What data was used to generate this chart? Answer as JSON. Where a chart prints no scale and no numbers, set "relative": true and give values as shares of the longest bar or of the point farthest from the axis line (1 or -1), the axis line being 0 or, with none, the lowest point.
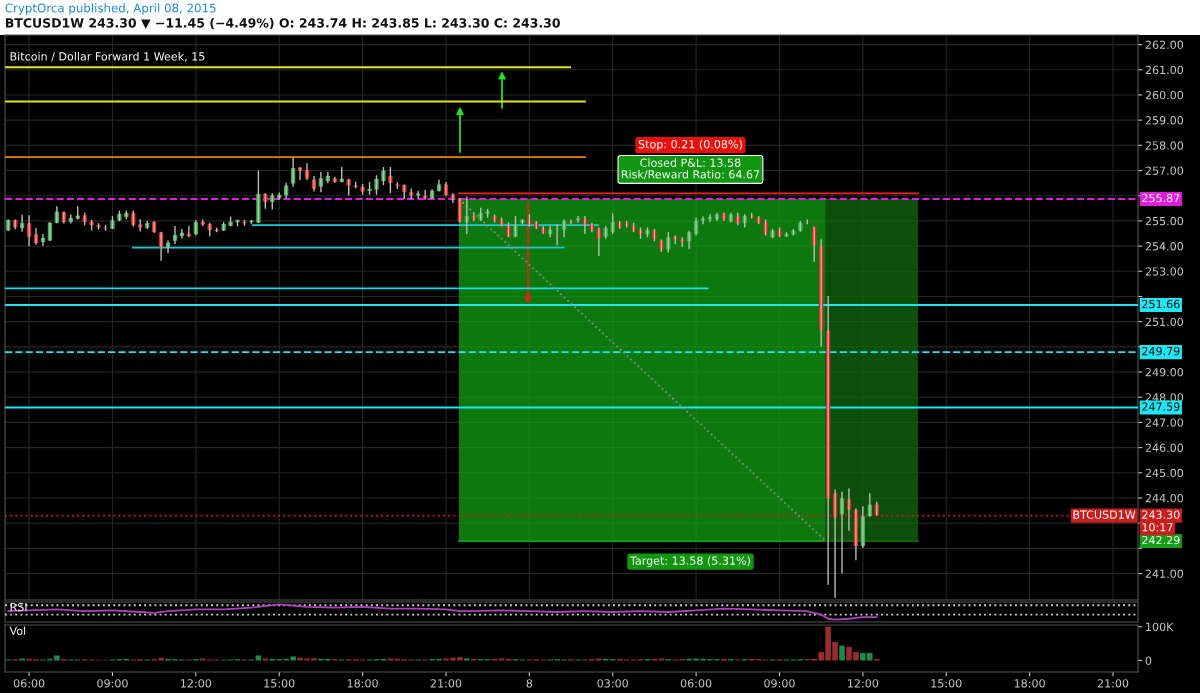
{
  "chart_data": [
    {
      "type": "candlestick",
      "title": "Bitcoin / Dollar Forward 1 Week, 15",
      "subtitle": "BTCUSD1W 243.30 ▼ −11.45 (−4.49%) O: 243.74 H: 243.85 L: 243.30 C: 243.30",
      "x": [
        "2015-04-07T05:15",
        "2015-04-07T05:30",
        "2015-04-07T05:45",
        "2015-04-07T06:00",
        "2015-04-07T06:15",
        "2015-04-07T06:30",
        "2015-04-07T06:45",
        "2015-04-07T07:00",
        "2015-04-07T07:15",
        "2015-04-07T07:30",
        "2015-04-07T07:45",
        "2015-04-07T08:00",
        "2015-04-07T08:15",
        "2015-04-07T08:30",
        "2015-04-07T08:45",
        "2015-04-07T09:00",
        "2015-04-07T09:15",
        "2015-04-07T09:30",
        "2015-04-07T09:45",
        "2015-04-07T10:00",
        "2015-04-07T10:15",
        "2015-04-07T10:30",
        "2015-04-07T10:45",
        "2015-04-07T11:00",
        "2015-04-07T11:15",
        "2015-04-07T11:30",
        "2015-04-07T11:45",
        "2015-04-07T12:00",
        "2015-04-07T12:15",
        "2015-04-07T12:30",
        "2015-04-07T12:45",
        "2015-04-07T13:00",
        "2015-04-07T13:15",
        "2015-04-07T13:30",
        "2015-04-07T13:45",
        "2015-04-07T14:00",
        "2015-04-07T14:15",
        "2015-04-07T14:30",
        "2015-04-07T14:45",
        "2015-04-07T15:00",
        "2015-04-07T15:15",
        "2015-04-07T15:30",
        "2015-04-07T15:45",
        "2015-04-07T16:00",
        "2015-04-07T16:15",
        "2015-04-07T16:30",
        "2015-04-07T16:45",
        "2015-04-07T17:00",
        "2015-04-07T17:15",
        "2015-04-07T17:30",
        "2015-04-07T17:45",
        "2015-04-07T18:00",
        "2015-04-07T18:15",
        "2015-04-07T18:30",
        "2015-04-07T18:45",
        "2015-04-07T19:00",
        "2015-04-07T19:15",
        "2015-04-07T19:30",
        "2015-04-07T19:45",
        "2015-04-07T20:00",
        "2015-04-07T20:15",
        "2015-04-07T20:30",
        "2015-04-07T20:45",
        "2015-04-07T21:00",
        "2015-04-07T21:15",
        "2015-04-07T21:30",
        "2015-04-07T21:45",
        "2015-04-07T22:00",
        "2015-04-07T22:15",
        "2015-04-07T22:30",
        "2015-04-07T22:45",
        "2015-04-07T23:00",
        "2015-04-07T23:15",
        "2015-04-07T23:30",
        "2015-04-07T23:45",
        "2015-04-08T00:00",
        "2015-04-08T00:15",
        "2015-04-08T00:30",
        "2015-04-08T00:45",
        "2015-04-08T01:00",
        "2015-04-08T01:15",
        "2015-04-08T01:30",
        "2015-04-08T01:45",
        "2015-04-08T02:00",
        "2015-04-08T02:15",
        "2015-04-08T02:30",
        "2015-04-08T02:45",
        "2015-04-08T03:00",
        "2015-04-08T03:15",
        "2015-04-08T03:30",
        "2015-04-08T03:45",
        "2015-04-08T04:00",
        "2015-04-08T04:15",
        "2015-04-08T04:30",
        "2015-04-08T04:45",
        "2015-04-08T05:00",
        "2015-04-08T05:15",
        "2015-04-08T05:30",
        "2015-04-08T05:45",
        "2015-04-08T06:00",
        "2015-04-08T06:15",
        "2015-04-08T06:30",
        "2015-04-08T06:45",
        "2015-04-08T07:00",
        "2015-04-08T07:15",
        "2015-04-08T07:30",
        "2015-04-08T07:45",
        "2015-04-08T08:00",
        "2015-04-08T08:15",
        "2015-04-08T08:30",
        "2015-04-08T08:45",
        "2015-04-08T09:00",
        "2015-04-08T09:15",
        "2015-04-08T09:30",
        "2015-04-08T09:45",
        "2015-04-08T10:00",
        "2015-04-08T10:15",
        "2015-04-08T10:30",
        "2015-04-08T10:45",
        "2015-04-08T11:00",
        "2015-04-08T11:15",
        "2015-04-08T11:30",
        "2015-04-08T11:45",
        "2015-04-08T12:00",
        "2015-04-08T12:15",
        "2015-04-08T12:30"
      ],
      "ohlc": [
        [
          254.62,
          255.06,
          254.6,
          255.04
        ],
        [
          255.04,
          255.06,
          254.67,
          254.74
        ],
        [
          254.71,
          255.23,
          254.57,
          254.91
        ],
        [
          254.91,
          255.22,
          254.0,
          254.37
        ],
        [
          254.47,
          254.71,
          254.05,
          254.12
        ],
        [
          254.16,
          254.48,
          254.0,
          254.32
        ],
        [
          254.22,
          254.95,
          254.2,
          254.93
        ],
        [
          254.92,
          255.58,
          254.91,
          255.37
        ],
        [
          255.35,
          255.37,
          254.9,
          254.96
        ],
        [
          254.96,
          255.25,
          254.9,
          255.12
        ],
        [
          255.09,
          255.58,
          255.06,
          255.21
        ],
        [
          255.22,
          255.32,
          254.83,
          254.96
        ],
        [
          254.97,
          255.04,
          254.62,
          254.83
        ],
        [
          254.83,
          254.91,
          254.65,
          254.75
        ],
        [
          254.73,
          254.85,
          254.61,
          254.7
        ],
        [
          254.69,
          255.19,
          254.68,
          255.02
        ],
        [
          255.02,
          255.41,
          254.99,
          255.28
        ],
        [
          255.15,
          255.41,
          255.06,
          255.32
        ],
        [
          255.32,
          255.41,
          254.78,
          254.83
        ],
        [
          254.86,
          255.07,
          254.58,
          254.74
        ],
        [
          254.73,
          255.0,
          254.68,
          254.91
        ],
        [
          254.96,
          254.99,
          254.52,
          254.55
        ],
        [
          254.55,
          254.57,
          253.42,
          253.94
        ],
        [
          253.96,
          254.22,
          253.73,
          254.14
        ],
        [
          254.21,
          254.8,
          254.08,
          254.44
        ],
        [
          254.39,
          254.68,
          254.29,
          254.53
        ],
        [
          254.49,
          254.8,
          254.35,
          254.4
        ],
        [
          254.47,
          255.04,
          254.43,
          254.95
        ],
        [
          254.96,
          255.06,
          254.8,
          254.86
        ],
        [
          254.88,
          254.93,
          254.39,
          254.63
        ],
        [
          254.65,
          254.73,
          254.55,
          254.6
        ],
        [
          254.62,
          254.96,
          254.6,
          254.88
        ],
        [
          254.8,
          255.17,
          254.78,
          254.97
        ],
        [
          254.95,
          255.06,
          254.78,
          255.03
        ],
        [
          254.96,
          255.04,
          254.8,
          254.91
        ],
        [
          254.95,
          255.04,
          254.87,
          255.0
        ],
        [
          254.93,
          257.0,
          254.91,
          256.07
        ],
        [
          256.07,
          256.1,
          255.48,
          255.75
        ],
        [
          255.75,
          256.1,
          255.45,
          256.01
        ],
        [
          255.9,
          256.13,
          255.84,
          256.04
        ],
        [
          256.01,
          256.51,
          255.9,
          256.4
        ],
        [
          256.49,
          257.5,
          256.36,
          257.1
        ],
        [
          257.12,
          257.14,
          256.62,
          256.98
        ],
        [
          257.03,
          257.29,
          256.62,
          256.68
        ],
        [
          256.64,
          256.77,
          256.17,
          256.27
        ],
        [
          256.36,
          256.94,
          256.14,
          256.69
        ],
        [
          256.58,
          256.94,
          256.49,
          256.79
        ],
        [
          256.69,
          256.75,
          256.51,
          256.54
        ],
        [
          256.54,
          257.14,
          256.53,
          256.67
        ],
        [
          256.65,
          256.67,
          256.01,
          256.4
        ],
        [
          256.41,
          256.55,
          256.29,
          256.35
        ],
        [
          256.35,
          256.46,
          256.04,
          256.17
        ],
        [
          256.19,
          256.55,
          256.04,
          256.27
        ],
        [
          256.24,
          256.81,
          256.04,
          256.67
        ],
        [
          256.58,
          257.14,
          256.42,
          257.0
        ],
        [
          256.79,
          257.14,
          256.1,
          256.51
        ],
        [
          256.44,
          256.53,
          256.27,
          256.39
        ],
        [
          256.44,
          256.44,
          255.87,
          256.14
        ],
        [
          256.14,
          256.29,
          255.87,
          256.01
        ],
        [
          256.01,
          256.2,
          255.9,
          256.09
        ],
        [
          256.0,
          256.23,
          255.84,
          255.9
        ],
        [
          255.9,
          256.26,
          255.87,
          256.2
        ],
        [
          256.19,
          256.63,
          256.17,
          256.45
        ],
        [
          256.45,
          256.54,
          255.99,
          256.03
        ],
        [
          256.05,
          256.1,
          255.71,
          255.9
        ],
        [
          255.88,
          255.91,
          254.93,
          254.97
        ],
        [
          254.94,
          255.97,
          254.48,
          255.19
        ],
        [
          255.19,
          255.32,
          255.0,
          255.06
        ],
        [
          255.06,
          255.52,
          255.0,
          255.3
        ],
        [
          255.29,
          255.48,
          255.13,
          255.38
        ],
        [
          255.19,
          255.26,
          254.94,
          255.0
        ],
        [
          255.03,
          255.13,
          254.78,
          254.86
        ],
        [
          254.8,
          254.94,
          254.35,
          254.37
        ],
        [
          254.37,
          255.19,
          254.35,
          254.84
        ],
        [
          254.93,
          255.07,
          254.87,
          255.04
        ],
        [
          254.99,
          255.26,
          254.77,
          254.86
        ],
        [
          254.93,
          255.0,
          254.68,
          254.73
        ],
        [
          254.71,
          254.8,
          254.48,
          254.52
        ],
        [
          254.48,
          254.8,
          254.35,
          254.65
        ],
        [
          254.68,
          254.87,
          254.03,
          254.7
        ],
        [
          254.65,
          255.06,
          254.35,
          255.0
        ],
        [
          254.99,
          255.06,
          254.87,
          254.93
        ],
        [
          255.03,
          255.19,
          254.93,
          255.1
        ],
        [
          255.09,
          255.19,
          254.48,
          254.86
        ],
        [
          254.86,
          254.93,
          254.55,
          254.64
        ],
        [
          254.7,
          254.74,
          253.61,
          254.31
        ],
        [
          254.37,
          254.8,
          254.29,
          254.71
        ],
        [
          254.55,
          255.29,
          254.48,
          254.96
        ],
        [
          254.93,
          255.0,
          254.68,
          254.75
        ],
        [
          254.93,
          255.0,
          254.74,
          254.83
        ],
        [
          254.8,
          254.93,
          254.55,
          254.61
        ],
        [
          254.64,
          254.74,
          254.29,
          254.46
        ],
        [
          254.46,
          254.74,
          254.35,
          254.64
        ],
        [
          254.61,
          254.68,
          254.19,
          254.29
        ],
        [
          254.22,
          254.26,
          253.77,
          253.86
        ],
        [
          253.86,
          254.55,
          253.74,
          254.35
        ],
        [
          254.37,
          254.42,
          254.07,
          254.26
        ],
        [
          254.26,
          254.35,
          253.96,
          254.16
        ],
        [
          254.19,
          254.61,
          253.87,
          254.55
        ],
        [
          254.48,
          255.13,
          254.42,
          255.0
        ],
        [
          255.0,
          255.17,
          254.87,
          255.09
        ],
        [
          255.06,
          255.26,
          254.96,
          255.16
        ],
        [
          255.06,
          255.32,
          255.0,
          255.26
        ],
        [
          255.29,
          255.32,
          255.0,
          255.06
        ],
        [
          254.99,
          255.32,
          254.94,
          255.26
        ],
        [
          255.22,
          255.32,
          254.83,
          254.91
        ],
        [
          254.91,
          255.26,
          254.74,
          255.19
        ],
        [
          255.19,
          255.32,
          255.09,
          255.12
        ],
        [
          255.13,
          255.19,
          254.87,
          254.93
        ],
        [
          254.96,
          255.06,
          254.42,
          254.48
        ],
        [
          254.35,
          254.68,
          254.31,
          254.61
        ],
        [
          254.65,
          254.74,
          254.35,
          254.39
        ],
        [
          254.39,
          254.55,
          254.35,
          254.48
        ],
        [
          254.47,
          254.68,
          254.42,
          254.6
        ],
        [
          254.61,
          255.0,
          254.57,
          254.93
        ],
        [
          254.93,
          255.06,
          254.87,
          254.9
        ],
        [
          254.75,
          254.78,
          253.38,
          254.03
        ],
        [
          253.99,
          254.29,
          250.01,
          250.66
        ],
        [
          250.64,
          252.02,
          240.56,
          243.99
        ],
        [
          244.19,
          244.34,
          240.04,
          243.22
        ],
        [
          243.35,
          244.25,
          241.01,
          243.99
        ],
        [
          243.95,
          244.38,
          242.7,
          243.54
        ],
        [
          243.51,
          243.58,
          241.53,
          242.09
        ],
        [
          242.09,
          243.67,
          242.01,
          243.28
        ],
        [
          243.28,
          244.19,
          243.25,
          243.73
        ],
        [
          243.74,
          243.85,
          243.3,
          243.3
        ]
      ],
      "xlim": [
        "2015-04-07T05:08",
        "2015-04-08T21:54"
      ],
      "xticks": [
        {
          "value": "2015-04-07T06:00",
          "label": null
        },
        {
          "value": "2015-04-07T09:00",
          "label": null
        },
        {
          "value": "2015-04-07T12:00",
          "label": null
        },
        {
          "value": "2015-04-07T15:00",
          "label": null
        },
        {
          "value": "2015-04-07T18:00",
          "label": null
        },
        {
          "value": "2015-04-07T21:00",
          "label": null
        },
        {
          "value": "2015-04-08T00:00",
          "label": null
        },
        {
          "value": "2015-04-08T03:00",
          "label": null
        },
        {
          "value": "2015-04-08T06:00",
          "label": null
        },
        {
          "value": "2015-04-08T09:00",
          "label": null
        },
        {
          "value": "2015-04-08T12:00",
          "label": null
        },
        {
          "value": "2015-04-08T15:00",
          "label": null
        },
        {
          "value": "2015-04-08T18:00",
          "label": null
        },
        {
          "value": "2015-04-08T21:00",
          "label": null
        }
      ],
      "ylim": [
        239.95,
        262.38
      ],
      "yticks": [
        {
          "value": 241,
          "label": "241.00"
        },
        {
          "value": 242,
          "label": null
        },
        {
          "value": 243,
          "label": null
        },
        {
          "value": 244,
          "label": "244.00"
        },
        {
          "value": 245,
          "label": "245.00"
        },
        {
          "value": 246,
          "label": "246.00"
        },
        {
          "value": 247,
          "label": "247.00"
        },
        {
          "value": 248,
          "label": "248.00"
        },
        {
          "value": 249,
          "label": "249.00"
        },
        {
          "value": 250,
          "label": null
        },
        {
          "value": 251,
          "label": "251.00"
        },
        {
          "value": 252,
          "label": null
        },
        {
          "value": 253,
          "label": "253.00"
        },
        {
          "value": 254,
          "label": "254.00"
        },
        {
          "value": 255,
          "label": "255.00"
        },
        {
          "value": 256,
          "label": null
        },
        {
          "value": 257,
          "label": "257.00"
        },
        {
          "value": 258,
          "label": "258.00"
        },
        {
          "value": 259,
          "label": "259.00"
        },
        {
          "value": 260,
          "label": "260.00"
        },
        {
          "value": 261,
          "label": "261.00"
        },
        {
          "value": 262,
          "label": "262.00"
        }
      ],
      "series": [
        {
          "type": "line",
          "color": "#e6e61a",
          "x": [
            "2015-04-07T05:08",
            "2015-04-08T01:28"
          ],
          "values": [
            261.1,
            261.1
          ]
        },
        {
          "type": "line",
          "color": "#e6e61a",
          "x": [
            "2015-04-07T05:08",
            "2015-04-08T02:00"
          ],
          "values": [
            259.74,
            259.74
          ]
        },
        {
          "type": "line",
          "color": "#e08a00",
          "x": [
            "2015-04-07T05:08",
            "2015-04-08T02:00"
          ],
          "values": [
            257.53,
            257.53
          ]
        },
        {
          "type": "line",
          "color": "#20c8d8",
          "x": [
            "2015-04-07T14:03",
            "2015-04-08T02:28"
          ],
          "values": [
            254.83,
            254.83
          ]
        },
        {
          "type": "line",
          "color": "#20c8d8",
          "x": [
            "2015-04-07T09:44",
            "2015-04-08T01:14"
          ],
          "values": [
            253.94,
            253.94
          ]
        },
        {
          "type": "line",
          "color": "#19e0f0",
          "x": [
            "2015-04-07T05:08",
            "2015-04-08T06:25"
          ],
          "values": [
            252.32,
            252.32
          ]
        },
        {
          "type": "line",
          "color": "#ff2020",
          "x": [
            "2015-04-07T21:28",
            "2015-04-08T13:59"
          ],
          "values": [
            256.09,
            256.09
          ]
        },
        {
          "type": "line",
          "color": "#12a012",
          "x": [
            "2015-04-07T21:28",
            "2015-04-08T10:40"
          ],
          "values": [
            242.29,
            242.29
          ],
          "lower": [
            242.29,
            242.29
          ],
          "upper": [
            255.87,
            255.87
          ]
        },
        {
          "type": "line",
          "color": "#0f6a0f",
          "x": [
            "2015-04-08T10:40",
            "2015-04-08T13:59"
          ],
          "values": [
            242.29,
            242.29
          ],
          "lower": [
            242.29,
            242.29
          ],
          "upper": [
            255.87,
            255.87
          ]
        },
        {
          "type": "line",
          "color": "#8a8a8a",
          "line_style": "dotted",
          "x": [
            "2015-04-07T21:28",
            "2015-04-08T10:40"
          ],
          "values": [
            255.87,
            242.29
          ]
        }
      ],
      "ref_lines": [
        {
          "axis": "y",
          "value": 255.87,
          "label": "255.87",
          "color": "#e01ee0",
          "line_style": "dashed"
        },
        {
          "axis": "y",
          "value": 251.66,
          "label": "251.66",
          "color": "#1ee6f5",
          "line_style": "solid"
        },
        {
          "axis": "y",
          "value": 249.79,
          "label": "249.79",
          "color": "#1ee6f5",
          "line_style": "dashed"
        },
        {
          "axis": "y",
          "value": 247.59,
          "label": "247.59",
          "color": "#1ee6f5",
          "line_style": "solid"
        },
        {
          "axis": "y",
          "value": 243.3,
          "label": "243.30",
          "color": "#c81e1e",
          "line_style": "dotted"
        }
      ],
      "annotations": [
        "CryptOrca published, April 08, 2015",
        "Stop: 0.21 (0.08%)",
        "Closed P&L: 13.58\nRisk/Reward Ratio: 64.67",
        "Target: 13.58 (5.31%)",
        {
          "text": "242.29",
          "y": 242.29
        },
        {
          "text": "BTCUSD1W",
          "y": 243.3
        },
        {
          "text": "10:17",
          "y": 242.8
        }
      ],
      "grid": true,
      "tick_labels": "y"
    },
    {
      "type": "line",
      "title": "RSI",
      "relative": true,
      "series": [
        {
          "color": "#b040c0",
          "x": [
            "2015-04-07T05:15",
            "2015-04-07T06:00",
            "2015-04-07T07:00",
            "2015-04-07T08:00",
            "2015-04-07T09:00",
            "2015-04-07T10:00",
            "2015-04-07T10:30",
            "2015-04-07T11:00",
            "2015-04-07T12:00",
            "2015-04-07T13:00",
            "2015-04-07T14:00",
            "2015-04-07T15:00",
            "2015-04-07T16:00",
            "2015-04-07T17:00",
            "2015-04-07T18:00",
            "2015-04-07T19:00",
            "2015-04-07T20:00",
            "2015-04-07T21:00",
            "2015-04-07T21:30",
            "2015-04-07T22:00",
            "2015-04-07T23:00",
            "2015-04-08T00:00",
            "2015-04-08T01:00",
            "2015-04-08T02:00",
            "2015-04-08T03:00",
            "2015-04-08T04:00",
            "2015-04-08T05:00",
            "2015-04-08T06:00",
            "2015-04-08T07:00",
            "2015-04-08T08:00",
            "2015-04-08T09:00",
            "2015-04-08T10:00",
            "2015-04-08T10:30",
            "2015-04-08T10:45",
            "2015-04-08T11:00",
            "2015-04-08T11:30",
            "2015-04-08T12:00",
            "2015-04-08T12:30"
          ],
          "values": [
            0.56,
            0.61,
            0.67,
            0.56,
            0.61,
            0.5,
            0.44,
            0.56,
            0.67,
            0.67,
            0.78,
            1.0,
            0.83,
            0.78,
            0.83,
            0.72,
            0.72,
            0.67,
            0.56,
            0.56,
            0.61,
            0.56,
            0.5,
            0.56,
            0.5,
            0.56,
            0.5,
            0.61,
            0.72,
            0.67,
            0.61,
            0.56,
            0.33,
            0.06,
            0.0,
            0.06,
            0.17,
            0.17
          ]
        }
      ],
      "ref_lines": [
        {
          "axis": "y",
          "value": 0.94,
          "color": "#c8c8c8",
          "line_style": "dotted"
        },
        {
          "axis": "y",
          "value": 0.33,
          "color": "#c8c8c8",
          "line_style": "dotted"
        }
      ],
      "xlim": [
        "2015-04-07T05:08",
        "2015-04-08T21:54"
      ],
      "tick_labels": false
    },
    {
      "type": "bar",
      "title": "Vol",
      "x": [
        "2015-04-07T05:15",
        "2015-04-07T05:30",
        "2015-04-07T05:45",
        "2015-04-07T06:00",
        "2015-04-07T06:15",
        "2015-04-07T06:30",
        "2015-04-07T06:45",
        "2015-04-07T07:00",
        "2015-04-07T07:15",
        "2015-04-07T07:30",
        "2015-04-07T07:45",
        "2015-04-07T08:00",
        "2015-04-07T08:15",
        "2015-04-07T08:30",
        "2015-04-07T08:45",
        "2015-04-07T09:00",
        "2015-04-07T09:15",
        "2015-04-07T09:30",
        "2015-04-07T09:45",
        "2015-04-07T10:00",
        "2015-04-07T10:15",
        "2015-04-07T10:30",
        "2015-04-07T10:45",
        "2015-04-07T11:00",
        "2015-04-07T11:15",
        "2015-04-07T11:30",
        "2015-04-07T11:45",
        "2015-04-07T12:00",
        "2015-04-07T12:15",
        "2015-04-07T12:30",
        "2015-04-07T12:45",
        "2015-04-07T13:00",
        "2015-04-07T13:15",
        "2015-04-07T13:30",
        "2015-04-07T13:45",
        "2015-04-07T14:00",
        "2015-04-07T14:15",
        "2015-04-07T14:30",
        "2015-04-07T14:45",
        "2015-04-07T15:00",
        "2015-04-07T15:15",
        "2015-04-07T15:30",
        "2015-04-07T15:45",
        "2015-04-07T16:00",
        "2015-04-07T16:15",
        "2015-04-07T16:30",
        "2015-04-07T16:45",
        "2015-04-07T17:00",
        "2015-04-07T17:15",
        "2015-04-07T17:30",
        "2015-04-07T17:45",
        "2015-04-07T18:00",
        "2015-04-07T18:15",
        "2015-04-07T18:30",
        "2015-04-07T18:45",
        "2015-04-07T19:00",
        "2015-04-07T19:15",
        "2015-04-07T19:30",
        "2015-04-07T19:45",
        "2015-04-07T20:00",
        "2015-04-07T20:15",
        "2015-04-07T20:30",
        "2015-04-07T20:45",
        "2015-04-07T21:00",
        "2015-04-07T21:15",
        "2015-04-07T21:30",
        "2015-04-07T21:45",
        "2015-04-07T22:00",
        "2015-04-07T22:15",
        "2015-04-07T22:30",
        "2015-04-07T22:45",
        "2015-04-07T23:00",
        "2015-04-07T23:15",
        "2015-04-07T23:30",
        "2015-04-07T23:45",
        "2015-04-08T00:00",
        "2015-04-08T00:15",
        "2015-04-08T00:30",
        "2015-04-08T00:45",
        "2015-04-08T01:00",
        "2015-04-08T01:15",
        "2015-04-08T01:30",
        "2015-04-08T01:45",
        "2015-04-08T02:00",
        "2015-04-08T02:15",
        "2015-04-08T02:30",
        "2015-04-08T02:45",
        "2015-04-08T03:00",
        "2015-04-08T03:15",
        "2015-04-08T03:30",
        "2015-04-08T03:45",
        "2015-04-08T04:00",
        "2015-04-08T04:15",
        "2015-04-08T04:30",
        "2015-04-08T04:45",
        "2015-04-08T05:00",
        "2015-04-08T05:15",
        "2015-04-08T05:30",
        "2015-04-08T05:45",
        "2015-04-08T06:00",
        "2015-04-08T06:15",
        "2015-04-08T06:30",
        "2015-04-08T06:45",
        "2015-04-08T07:00",
        "2015-04-08T07:15",
        "2015-04-08T07:30",
        "2015-04-08T07:45",
        "2015-04-08T08:00",
        "2015-04-08T08:15",
        "2015-04-08T08:30",
        "2015-04-08T08:45",
        "2015-04-08T09:00",
        "2015-04-08T09:15",
        "2015-04-08T09:30",
        "2015-04-08T09:45",
        "2015-04-08T10:00",
        "2015-04-08T10:15",
        "2015-04-08T10:30",
        "2015-04-08T10:45",
        "2015-04-08T11:00",
        "2015-04-08T11:15",
        "2015-04-08T11:30",
        "2015-04-08T11:45",
        "2015-04-08T12:00",
        "2015-04-08T12:15",
        "2015-04-08T12:30"
      ],
      "values": [
        3000,
        4000,
        6000,
        5000,
        4000,
        3000,
        5000,
        15000,
        4000,
        3000,
        3000,
        4000,
        3000,
        2000,
        2000,
        3000,
        4000,
        5000,
        3000,
        4000,
        3000,
        4000,
        8000,
        5000,
        4000,
        3000,
        3000,
        4000,
        6000,
        3000,
        3000,
        2000,
        3000,
        4000,
        3000,
        3000,
        15000,
        6000,
        5000,
        4000,
        5000,
        12000,
        8000,
        6000,
        7000,
        5000,
        5000,
        4000,
        3000,
        4000,
        4000,
        3000,
        3000,
        4000,
        5000,
        6000,
        5000,
        4000,
        3000,
        3000,
        3000,
        4000,
        5000,
        6000,
        8000,
        10000,
        6000,
        5000,
        4000,
        4000,
        5000,
        6000,
        5000,
        4000,
        3000,
        3000,
        4000,
        3000,
        3000,
        4000,
        3000,
        4000,
        3000,
        3000,
        4000,
        6000,
        5000,
        4000,
        5000,
        3000,
        3000,
        4000,
        4000,
        5000,
        6000,
        4000,
        3000,
        4000,
        5000,
        6000,
        5000,
        4000,
        4000,
        5000,
        4000,
        3000,
        4000,
        5000,
        4000,
        3000,
        3000,
        4000,
        3000,
        3000,
        4000,
        4000,
        5000,
        25000,
        100000,
        55000,
        44000,
        40000,
        25000,
        22000,
        22000,
        5000
      ],
      "colors": [
        "#1e8a45",
        "#9a2c2c",
        "#1e8a45",
        "#9a2c2c",
        "#9a2c2c",
        "#1e8a45",
        "#1e8a45",
        "#1e8a45",
        "#9a2c2c",
        "#1e8a45",
        "#1e8a45",
        "#9a2c2c",
        "#9a2c2c",
        "#9a2c2c",
        "#9a2c2c",
        "#1e8a45",
        "#1e8a45",
        "#1e8a45",
        "#9a2c2c",
        "#9a2c2c",
        "#1e8a45",
        "#9a2c2c",
        "#9a2c2c",
        "#1e8a45",
        "#1e8a45",
        "#1e8a45",
        "#9a2c2c",
        "#1e8a45",
        "#9a2c2c",
        "#9a2c2c",
        "#9a2c2c",
        "#1e8a45",
        "#1e8a45",
        "#1e8a45",
        "#9a2c2c",
        "#1e8a45",
        "#1e8a45",
        "#9a2c2c",
        "#1e8a45",
        "#1e8a45",
        "#1e8a45",
        "#1e8a45",
        "#9a2c2c",
        "#9a2c2c",
        "#9a2c2c",
        "#1e8a45",
        "#1e8a45",
        "#9a2c2c",
        "#1e8a45",
        "#9a2c2c",
        "#9a2c2c",
        "#9a2c2c",
        "#1e8a45",
        "#1e8a45",
        "#1e8a45",
        "#9a2c2c",
        "#9a2c2c",
        "#9a2c2c",
        "#9a2c2c",
        "#1e8a45",
        "#9a2c2c",
        "#1e8a45",
        "#1e8a45",
        "#9a2c2c",
        "#9a2c2c",
        "#9a2c2c",
        "#1e8a45",
        "#9a2c2c",
        "#1e8a45",
        "#1e8a45",
        "#9a2c2c",
        "#9a2c2c",
        "#9a2c2c",
        "#1e8a45",
        "#1e8a45",
        "#9a2c2c",
        "#9a2c2c",
        "#9a2c2c",
        "#1e8a45",
        "#1e8a45",
        "#1e8a45",
        "#9a2c2c",
        "#1e8a45",
        "#9a2c2c",
        "#9a2c2c",
        "#9a2c2c",
        "#1e8a45",
        "#1e8a45",
        "#9a2c2c",
        "#9a2c2c",
        "#9a2c2c",
        "#9a2c2c",
        "#1e8a45",
        "#9a2c2c",
        "#9a2c2c",
        "#1e8a45",
        "#9a2c2c",
        "#9a2c2c",
        "#1e8a45",
        "#1e8a45",
        "#1e8a45",
        "#1e8a45",
        "#1e8a45",
        "#9a2c2c",
        "#1e8a45",
        "#9a2c2c",
        "#1e8a45",
        "#9a2c2c",
        "#9a2c2c",
        "#9a2c2c",
        "#1e8a45",
        "#9a2c2c",
        "#1e8a45",
        "#1e8a45",
        "#1e8a45",
        "#9a2c2c",
        "#9a2c2c",
        "#9a2c2c",
        "#9a2c2c",
        "#9a2c2c",
        "#1e8a45",
        "#9a2c2c",
        "#9a2c2c",
        "#1e8a45",
        "#1e8a45",
        "#9a2c2c"
      ],
      "xlim": [
        "2015-04-07T05:08",
        "2015-04-08T21:54"
      ],
      "xticks": [
        {
          "value": "2015-04-07T06:00",
          "label": "06:00"
        },
        {
          "value": "2015-04-07T09:00",
          "label": "09:00"
        },
        {
          "value": "2015-04-07T12:00",
          "label": "12:00"
        },
        {
          "value": "2015-04-07T15:00",
          "label": "15:00"
        },
        {
          "value": "2015-04-07T18:00",
          "label": "18:00"
        },
        {
          "value": "2015-04-07T21:00",
          "label": "21:00"
        },
        {
          "value": "2015-04-08T00:00",
          "label": "8"
        },
        {
          "value": "2015-04-08T03:00",
          "label": "03:00"
        },
        {
          "value": "2015-04-08T06:00",
          "label": "06:00"
        },
        {
          "value": "2015-04-08T09:00",
          "label": "09:00"
        },
        {
          "value": "2015-04-08T12:00",
          "label": "12:00"
        },
        {
          "value": "2015-04-08T15:00",
          "label": "15:00"
        },
        {
          "value": "2015-04-08T18:00",
          "label": "18:00"
        },
        {
          "value": "2015-04-08T21:00",
          "label": "21:00"
        }
      ],
      "ylim": [
        -34000,
        105000
      ],
      "yticks": [
        {
          "value": 0,
          "label": "0"
        },
        {
          "value": 100000,
          "label": "100K"
        }
      ]
    }
  ]
}
